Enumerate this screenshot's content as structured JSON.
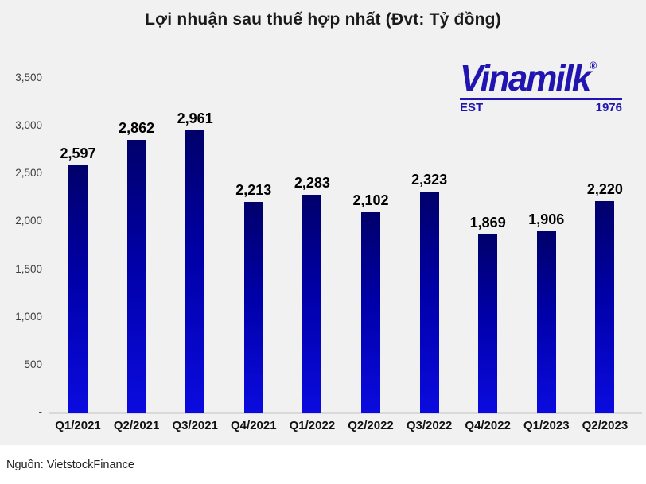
{
  "title": "Lợi nhuận sau thuế hợp nhất (Đvt: Tỷ đồng)",
  "source": "Nguồn: VietstockFinance",
  "logo": {
    "brand": "Vinamilk",
    "registered": "®",
    "est_label": "EST",
    "year": "1976",
    "color": "#2015b0"
  },
  "colors": {
    "chart_background": "#f1f1f1",
    "footer_background": "#ffffff",
    "bar_gradient_top": "#00006a",
    "bar_gradient_bottom": "#0b0be0",
    "axis_line": "#d9d9d9",
    "title_text": "#1a1a1a",
    "tick_text": "#3d3d3d",
    "value_label_text": "#000000"
  },
  "chart_data": {
    "type": "bar",
    "title": "Lợi nhuận sau thuế hợp nhất (Đvt: Tỷ đồng)",
    "xlabel": "",
    "ylabel": "",
    "categories": [
      "Q1/2021",
      "Q2/2021",
      "Q3/2021",
      "Q4/2021",
      "Q1/2022",
      "Q2/2022",
      "Q3/2022",
      "Q4/2022",
      "Q1/2023",
      "Q2/2023"
    ],
    "values": [
      2597,
      2862,
      2961,
      2213,
      2283,
      2102,
      2323,
      1869,
      1906,
      2220
    ],
    "value_labels": [
      "2,597",
      "2,862",
      "2,961",
      "2,213",
      "2,283",
      "2,102",
      "2,323",
      "1,869",
      "1,906",
      "2,220"
    ],
    "ylim": [
      0,
      3500
    ],
    "yticks": [
      {
        "label": "3,500",
        "value": 3500
      },
      {
        "label": "3,000",
        "value": 3000
      },
      {
        "label": "2,500",
        "value": 2500
      },
      {
        "label": "2,000",
        "value": 2000
      },
      {
        "label": "1,500",
        "value": 1500
      },
      {
        "label": "1,000",
        "value": 1000
      },
      {
        "label": "500",
        "value": 500
      },
      {
        "label": "-",
        "value": 0
      }
    ],
    "grid": false,
    "legend": "none",
    "data_labels": true,
    "source": "Nguồn: VietstockFinance"
  }
}
